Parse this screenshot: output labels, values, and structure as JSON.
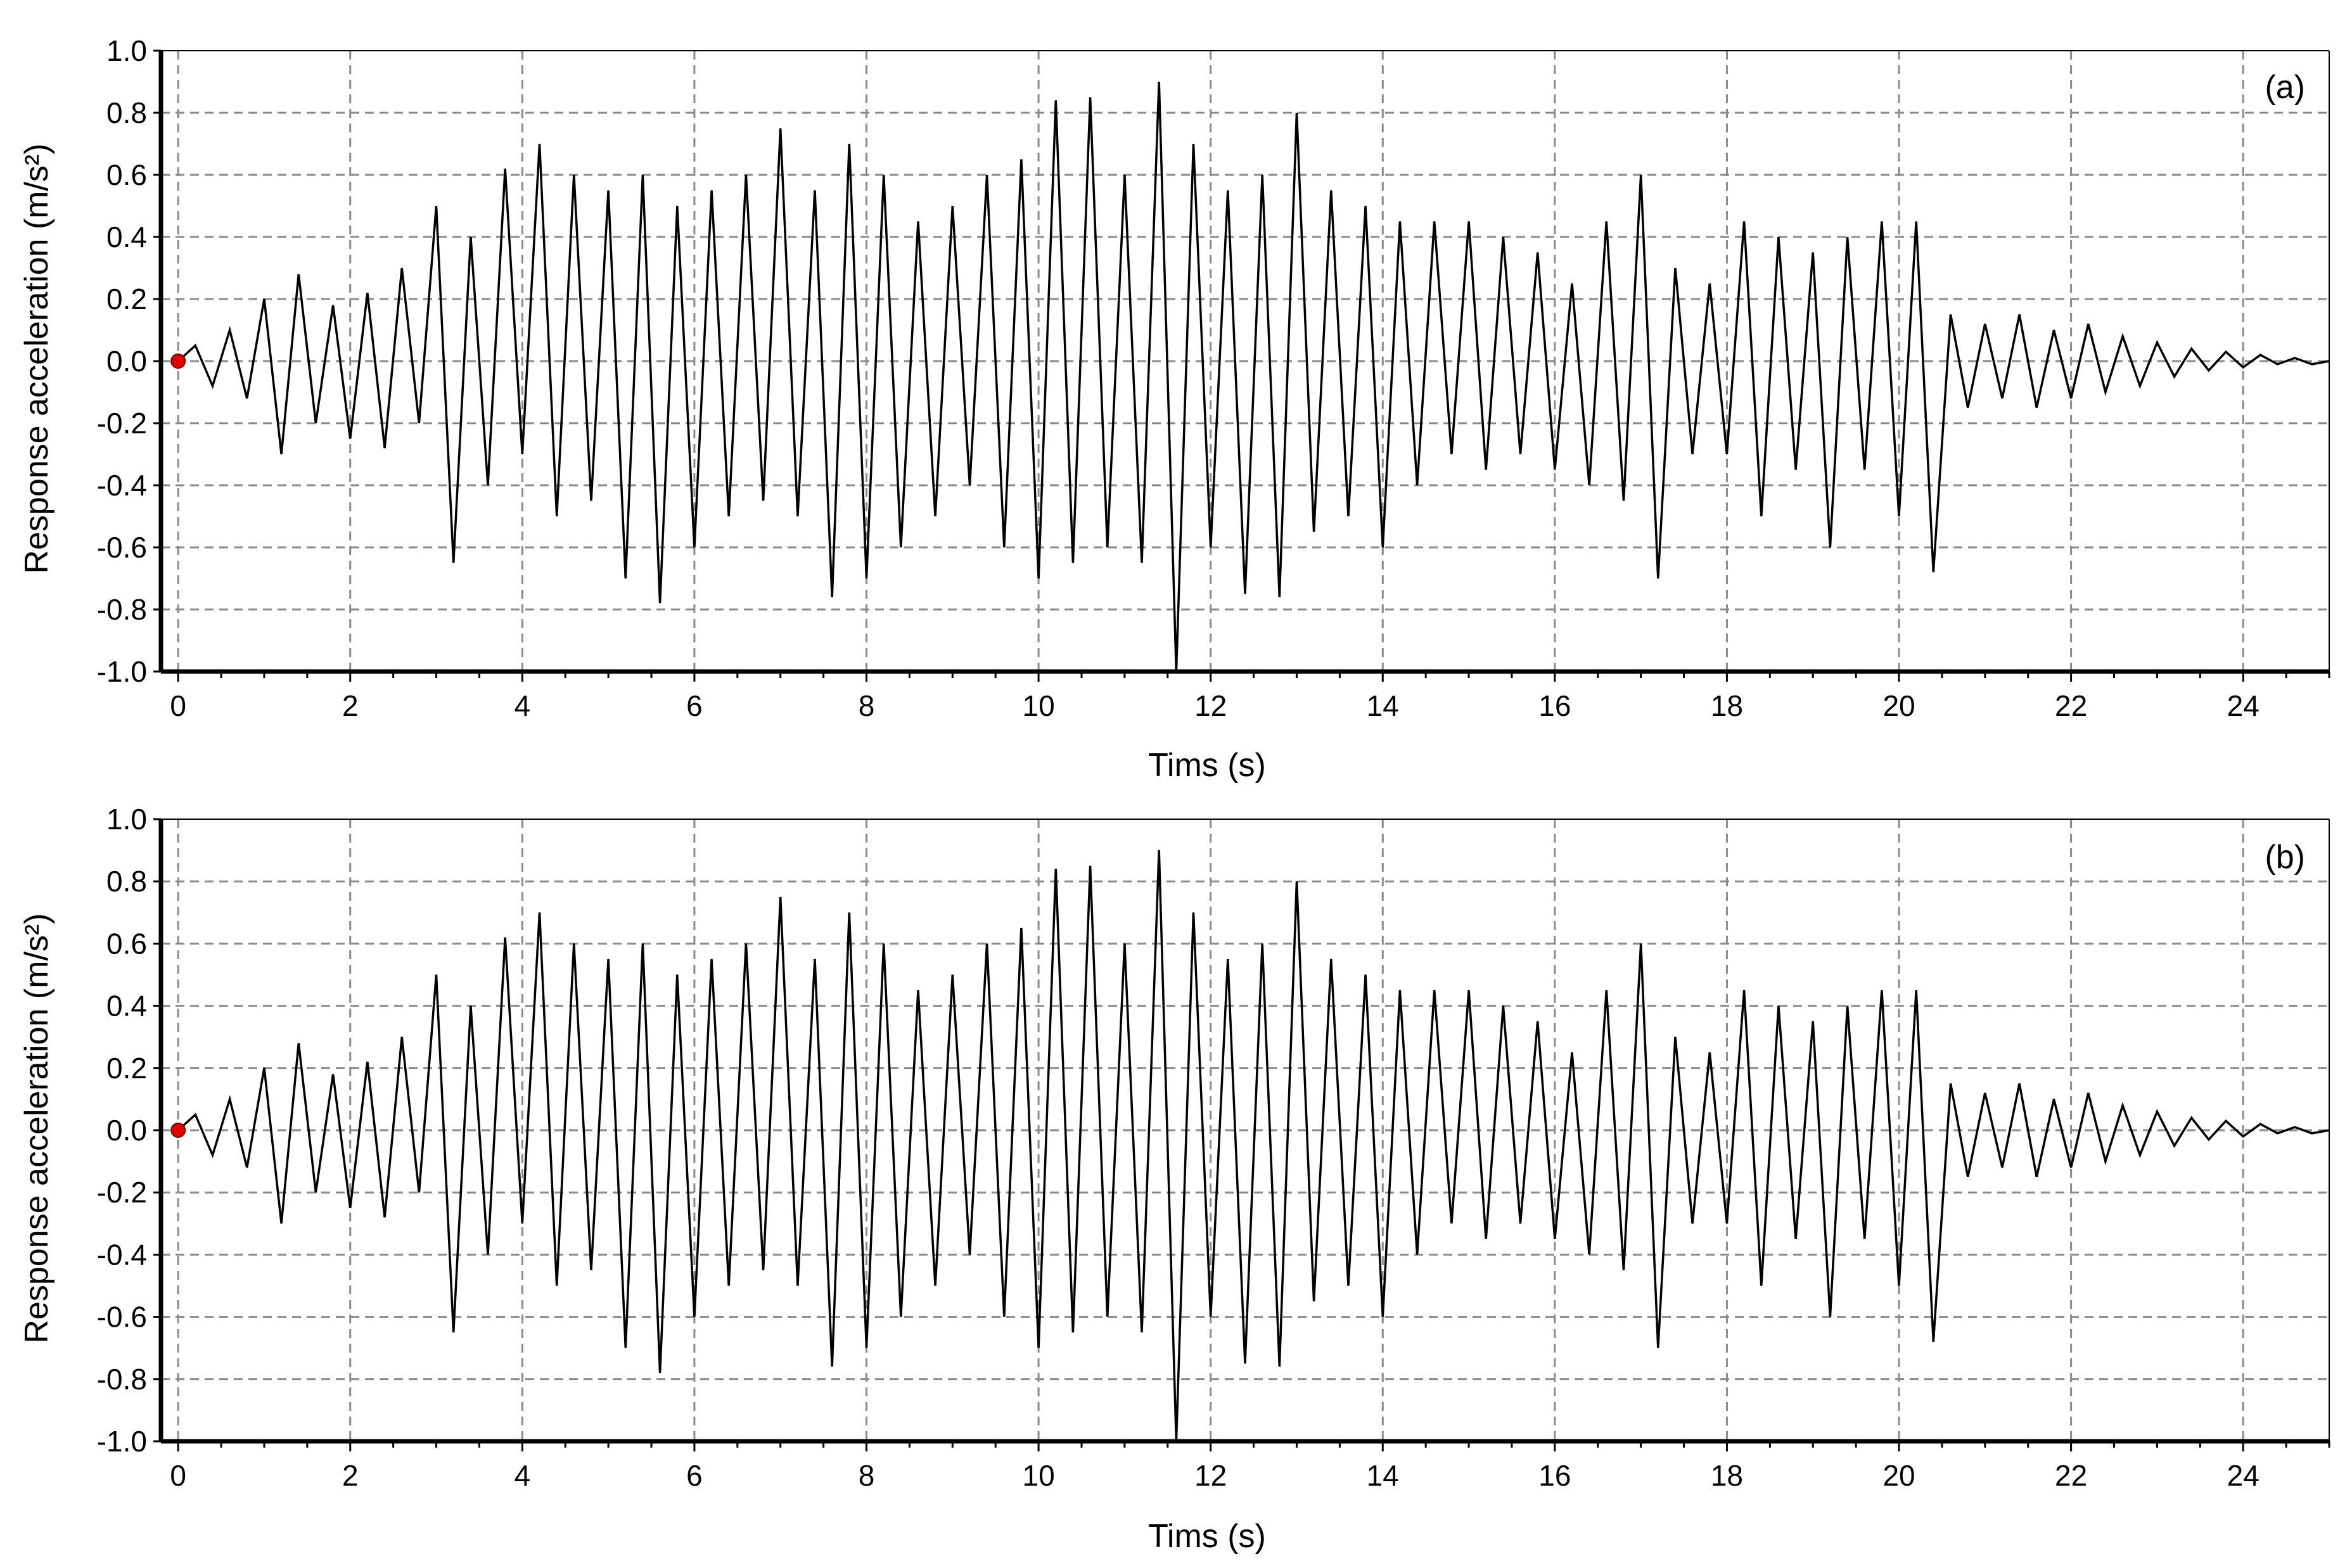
{
  "chart_data": [
    {
      "type": "line",
      "panel_label": "(a)",
      "xlabel": "Tims (s)",
      "ylabel": "Response acceleration (m/s²)",
      "xlim": [
        -0.2,
        25
      ],
      "ylim": [
        -1.0,
        1.0
      ],
      "xticks": [
        0,
        2,
        4,
        6,
        8,
        10,
        12,
        14,
        16,
        18,
        20,
        22,
        24
      ],
      "yticks": [
        1.0,
        0.8,
        0.6,
        0.4,
        0.2,
        0.0,
        -0.2,
        -0.4,
        -0.6,
        -0.8,
        -1.0
      ],
      "grid": true,
      "marker_start": {
        "x": 0,
        "y": 0,
        "color": "#e00000"
      },
      "line_color": "#000000",
      "series": [
        {
          "x": [
            0,
            0.2,
            0.4,
            0.6,
            0.8,
            1.0,
            1.2,
            1.4,
            1.6,
            1.8,
            2.0,
            2.2,
            2.4,
            2.6,
            2.8,
            3.0,
            3.2,
            3.4,
            3.6,
            3.8,
            4.0,
            4.2,
            4.4,
            4.6,
            4.8,
            5.0,
            5.2,
            5.4,
            5.6,
            5.8,
            6.0,
            6.2,
            6.4,
            6.6,
            6.8,
            7.0,
            7.2,
            7.4,
            7.6,
            7.8,
            8.0,
            8.2,
            8.4,
            8.6,
            8.8,
            9.0,
            9.2,
            9.4,
            9.6,
            9.8,
            10.0,
            10.2,
            10.4,
            10.6,
            10.8,
            11.0,
            11.2,
            11.4,
            11.6,
            11.8,
            12.0,
            12.2,
            12.4,
            12.6,
            12.8,
            13.0,
            13.2,
            13.4,
            13.6,
            13.8,
            14.0,
            14.2,
            14.4,
            14.6,
            14.8,
            15.0,
            15.2,
            15.4,
            15.6,
            15.8,
            16.0,
            16.2,
            16.4,
            16.6,
            16.8,
            17.0,
            17.2,
            17.4,
            17.6,
            17.8,
            18.0,
            18.2,
            18.4,
            18.6,
            18.8,
            19.0,
            19.2,
            19.4,
            19.6,
            19.8,
            20.0,
            20.2,
            20.4,
            20.6,
            20.8,
            21.0,
            21.2,
            21.4,
            21.6,
            21.8,
            22.0,
            22.2,
            22.4,
            22.6,
            22.8,
            23.0,
            23.2,
            23.4,
            23.6,
            23.8,
            24.0,
            24.2,
            24.4,
            24.6,
            24.8,
            25.0
          ],
          "values": [
            0.0,
            0.05,
            -0.08,
            0.1,
            -0.12,
            0.2,
            -0.3,
            0.28,
            -0.2,
            0.18,
            -0.25,
            0.22,
            -0.28,
            0.3,
            -0.2,
            0.5,
            -0.65,
            0.4,
            -0.4,
            0.62,
            -0.3,
            0.7,
            -0.5,
            0.6,
            -0.45,
            0.55,
            -0.7,
            0.6,
            -0.78,
            0.5,
            -0.6,
            0.55,
            -0.5,
            0.6,
            -0.45,
            0.75,
            -0.5,
            0.55,
            -0.76,
            0.7,
            -0.7,
            0.6,
            -0.6,
            0.45,
            -0.5,
            0.5,
            -0.4,
            0.6,
            -0.6,
            0.65,
            -0.7,
            0.84,
            -0.65,
            0.85,
            -0.6,
            0.6,
            -0.65,
            0.9,
            -1.0,
            0.7,
            -0.6,
            0.55,
            -0.75,
            0.6,
            -0.76,
            0.8,
            -0.55,
            0.55,
            -0.5,
            0.5,
            -0.6,
            0.45,
            -0.4,
            0.45,
            -0.3,
            0.45,
            -0.35,
            0.4,
            -0.3,
            0.35,
            -0.35,
            0.25,
            -0.4,
            0.45,
            -0.45,
            0.6,
            -0.7,
            0.3,
            -0.3,
            0.25,
            -0.3,
            0.45,
            -0.5,
            0.4,
            -0.35,
            0.35,
            -0.6,
            0.4,
            -0.35,
            0.45,
            -0.5,
            0.45,
            -0.68,
            0.15,
            -0.15,
            0.12,
            -0.12,
            0.15,
            -0.15,
            0.1,
            -0.12,
            0.12,
            -0.1,
            0.08,
            -0.08,
            0.06,
            -0.05,
            0.04,
            -0.03,
            0.03,
            -0.02,
            0.02,
            -0.01,
            0.01,
            -0.01,
            0.0
          ]
        }
      ]
    },
    {
      "type": "line",
      "panel_label": "(b)",
      "xlabel": "Tims (s)",
      "ylabel": "Response acceleration (m/s²)",
      "xlim": [
        -0.2,
        25
      ],
      "ylim": [
        -1.0,
        1.0
      ],
      "xticks": [
        0,
        2,
        4,
        6,
        8,
        10,
        12,
        14,
        16,
        18,
        20,
        22,
        24
      ],
      "yticks": [
        1.0,
        0.8,
        0.6,
        0.4,
        0.2,
        0.0,
        -0.2,
        -0.4,
        -0.6,
        -0.8,
        -1.0
      ],
      "grid": true,
      "marker_start": {
        "x": 0,
        "y": 0,
        "color": "#e00000"
      },
      "line_color": "#000000",
      "series": [
        {
          "x": [
            0,
            0.2,
            0.4,
            0.6,
            0.8,
            1.0,
            1.2,
            1.4,
            1.6,
            1.8,
            2.0,
            2.2,
            2.4,
            2.6,
            2.8,
            3.0,
            3.2,
            3.4,
            3.6,
            3.8,
            4.0,
            4.2,
            4.4,
            4.6,
            4.8,
            5.0,
            5.2,
            5.4,
            5.6,
            5.8,
            6.0,
            6.2,
            6.4,
            6.6,
            6.8,
            7.0,
            7.2,
            7.4,
            7.6,
            7.8,
            8.0,
            8.2,
            8.4,
            8.6,
            8.8,
            9.0,
            9.2,
            9.4,
            9.6,
            9.8,
            10.0,
            10.2,
            10.4,
            10.6,
            10.8,
            11.0,
            11.2,
            11.4,
            11.6,
            11.8,
            12.0,
            12.2,
            12.4,
            12.6,
            12.8,
            13.0,
            13.2,
            13.4,
            13.6,
            13.8,
            14.0,
            14.2,
            14.4,
            14.6,
            14.8,
            15.0,
            15.2,
            15.4,
            15.6,
            15.8,
            16.0,
            16.2,
            16.4,
            16.6,
            16.8,
            17.0,
            17.2,
            17.4,
            17.6,
            17.8,
            18.0,
            18.2,
            18.4,
            18.6,
            18.8,
            19.0,
            19.2,
            19.4,
            19.6,
            19.8,
            20.0,
            20.2,
            20.4,
            20.6,
            20.8,
            21.0,
            21.2,
            21.4,
            21.6,
            21.8,
            22.0,
            22.2,
            22.4,
            22.6,
            22.8,
            23.0,
            23.2,
            23.4,
            23.6,
            23.8,
            24.0,
            24.2,
            24.4,
            24.6,
            24.8,
            25.0
          ],
          "values": [
            0.0,
            0.05,
            -0.08,
            0.1,
            -0.12,
            0.2,
            -0.3,
            0.28,
            -0.2,
            0.18,
            -0.25,
            0.22,
            -0.28,
            0.3,
            -0.2,
            0.5,
            -0.65,
            0.4,
            -0.4,
            0.62,
            -0.3,
            0.7,
            -0.5,
            0.6,
            -0.45,
            0.55,
            -0.7,
            0.6,
            -0.78,
            0.5,
            -0.6,
            0.55,
            -0.5,
            0.6,
            -0.45,
            0.75,
            -0.5,
            0.55,
            -0.76,
            0.7,
            -0.7,
            0.6,
            -0.6,
            0.45,
            -0.5,
            0.5,
            -0.4,
            0.6,
            -0.6,
            0.65,
            -0.7,
            0.84,
            -0.65,
            0.85,
            -0.6,
            0.6,
            -0.65,
            0.9,
            -1.0,
            0.7,
            -0.6,
            0.55,
            -0.75,
            0.6,
            -0.76,
            0.8,
            -0.55,
            0.55,
            -0.5,
            0.5,
            -0.6,
            0.45,
            -0.4,
            0.45,
            -0.3,
            0.45,
            -0.35,
            0.4,
            -0.3,
            0.35,
            -0.35,
            0.25,
            -0.4,
            0.45,
            -0.45,
            0.6,
            -0.7,
            0.3,
            -0.3,
            0.25,
            -0.3,
            0.45,
            -0.5,
            0.4,
            -0.35,
            0.35,
            -0.6,
            0.4,
            -0.35,
            0.45,
            -0.5,
            0.45,
            -0.68,
            0.15,
            -0.15,
            0.12,
            -0.12,
            0.15,
            -0.15,
            0.1,
            -0.12,
            0.12,
            -0.1,
            0.08,
            -0.08,
            0.06,
            -0.05,
            0.04,
            -0.03,
            0.03,
            -0.02,
            0.02,
            -0.01,
            0.01,
            -0.01,
            0.0
          ]
        }
      ]
    }
  ]
}
